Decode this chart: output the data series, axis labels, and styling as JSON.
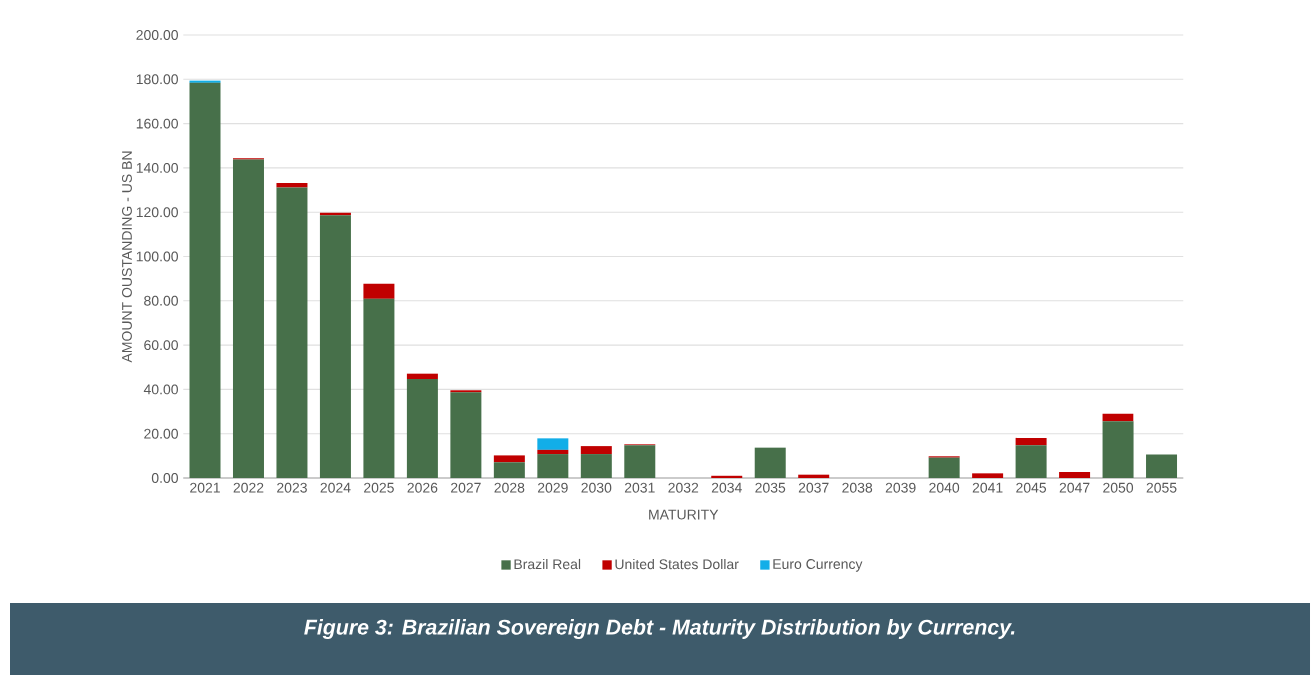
{
  "chart_data": {
    "type": "bar",
    "title": "Figure 3: Brazilian Sovereign Debt - Maturity Distribution by Currency.",
    "xlabel": "MATURITY",
    "ylabel": "AMOUNT OUSTANDING - US BN",
    "categories": [
      "2021",
      "2022",
      "2023",
      "2024",
      "2025",
      "2026",
      "2027",
      "2028",
      "2029",
      "2030",
      "2031",
      "2032",
      "2034",
      "2035",
      "2037",
      "2038",
      "2039",
      "2040",
      "2041",
      "2045",
      "2047",
      "2050",
      "2055"
    ],
    "stacked": true,
    "series": [
      {
        "name": "Brazil Real",
        "color": "#47704a",
        "values": [
          178.4,
          143.8,
          131.1,
          118.6,
          80.9,
          44.7,
          38.7,
          7.1,
          10.8,
          10.8,
          14.8,
          0,
          0,
          13.7,
          0,
          0,
          0,
          9.2,
          0,
          14.8,
          0,
          25.6,
          10.6
        ]
      },
      {
        "name": "United States Dollar",
        "color": "#c00000",
        "values": [
          0,
          0.5,
          2.1,
          1.1,
          6.8,
          2.4,
          0.9,
          3.1,
          1.9,
          3.6,
          0.4,
          0,
          1.0,
          0,
          1.5,
          0,
          0,
          0.6,
          2.1,
          3.3,
          2.7,
          3.4,
          0
        ]
      },
      {
        "name": "Euro Currency",
        "color": "#12aee8",
        "values": [
          1.0,
          0,
          0,
          0,
          0,
          0,
          0,
          0,
          5.2,
          0,
          0,
          0,
          0,
          0,
          0,
          0,
          0,
          0,
          0,
          0,
          0,
          0,
          0
        ]
      }
    ],
    "ylim": [
      0,
      200
    ],
    "yticks": [
      {
        "value": 0,
        "label": "0.00"
      },
      {
        "value": 20,
        "label": "20.00"
      },
      {
        "value": 40,
        "label": "40.00"
      },
      {
        "value": 60,
        "label": "60.00"
      },
      {
        "value": 80,
        "label": "80.00"
      },
      {
        "value": 100,
        "label": "100.00"
      },
      {
        "value": 120,
        "label": "120.00"
      },
      {
        "value": 140,
        "label": "140.00"
      },
      {
        "value": 160,
        "label": "160.00"
      },
      {
        "value": 180,
        "label": "180.00"
      },
      {
        "value": 200,
        "label": "200.00"
      }
    ],
    "grid": "y",
    "legend": "bottom"
  }
}
